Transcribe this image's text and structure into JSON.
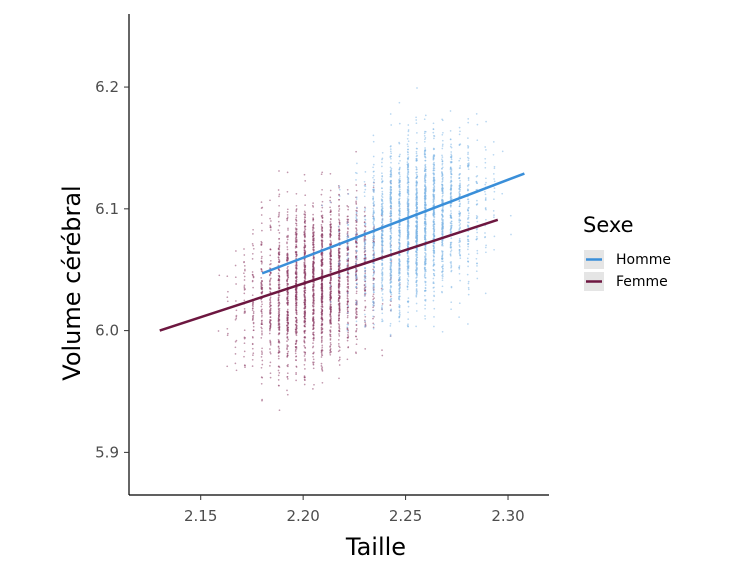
{
  "chart_data": {
    "type": "scatter",
    "xlabel": "Taille",
    "ylabel": "Volume cérébral",
    "xlim": [
      2.115,
      2.32
    ],
    "ylim": [
      5.865,
      6.26
    ],
    "x_ticks": [
      {
        "value": 2.15,
        "label": "2.15"
      },
      {
        "value": 2.2,
        "label": "2.20"
      },
      {
        "value": 2.25,
        "label": "2.25"
      },
      {
        "value": 2.3,
        "label": "2.30"
      }
    ],
    "y_ticks": [
      {
        "value": 5.9,
        "label": "5.9"
      },
      {
        "value": 6.0,
        "label": "6.0"
      },
      {
        "value": 6.1,
        "label": "6.1"
      },
      {
        "value": 6.2,
        "label": "6.2"
      }
    ],
    "grid": false,
    "legend": {
      "title": "Sexe",
      "position": "right"
    },
    "series": [
      {
        "name": "Homme",
        "color": "#3a8fd9",
        "point_color": "#7fb6e6",
        "x_range": [
          2.18,
          2.31
        ],
        "x_center": 2.255,
        "y_center": 6.09,
        "fit": {
          "x": [
            2.18,
            2.308
          ],
          "y": [
            6.047,
            6.129
          ]
        }
      },
      {
        "name": "Femme",
        "color": "#6d1740",
        "point_color": "#8e3f68",
        "x_range": [
          2.13,
          2.295
        ],
        "x_center": 2.205,
        "y_center": 6.04,
        "fit": {
          "x": [
            2.13,
            2.295
          ],
          "y": [
            6.0,
            6.091
          ]
        }
      }
    ]
  }
}
